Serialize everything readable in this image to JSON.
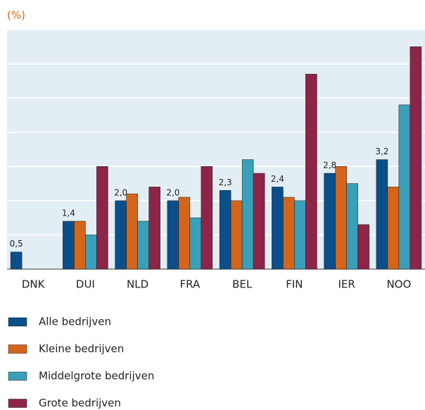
{
  "chart_data": {
    "type": "bar",
    "y_label": "(%)",
    "categories": [
      "DNK",
      "DUI",
      "NLD",
      "FRA",
      "BEL",
      "FIN",
      "IER",
      "NOO"
    ],
    "series": [
      {
        "name": "Alle bedrijven",
        "color": "#0b4f8a",
        "values": [
          0.5,
          1.4,
          2.0,
          2.0,
          2.3,
          2.4,
          2.8,
          3.2
        ],
        "value_labels": [
          "0,5",
          "1,4",
          "2,0",
          "2,0",
          "2,3",
          "2,4",
          "2,8",
          "3,2"
        ]
      },
      {
        "name": "Kleine bedrijven",
        "color": "#d4651b",
        "values": [
          null,
          1.4,
          2.2,
          2.1,
          2.0,
          2.1,
          3.0,
          2.4
        ]
      },
      {
        "name": "Middelgrote bedrijven",
        "color": "#3a9fb8",
        "values": [
          null,
          1.0,
          1.4,
          1.5,
          3.2,
          2.0,
          2.5,
          4.8
        ]
      },
      {
        "name": "Grote bedrijven",
        "color": "#8c2548",
        "values": [
          null,
          3.0,
          2.4,
          3.0,
          2.8,
          5.7,
          1.3,
          6.5
        ]
      }
    ],
    "ylim": [
      0,
      7
    ],
    "yticks": [
      0,
      1,
      2,
      3,
      4,
      5,
      6,
      7
    ],
    "grid": true
  }
}
